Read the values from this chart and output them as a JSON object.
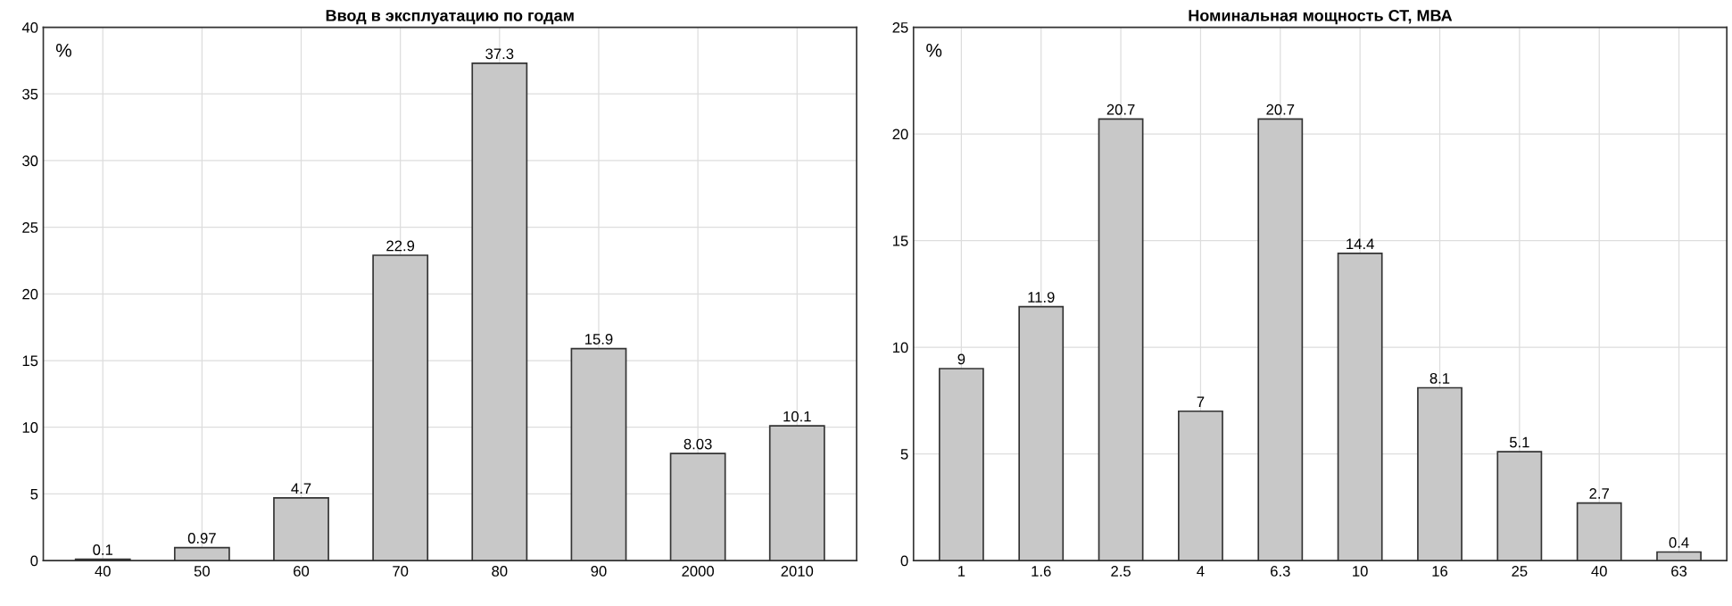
{
  "chart_data": [
    {
      "type": "bar",
      "title": "Ввод в эксплуатацию по годам",
      "ylabel": "%",
      "categories": [
        "40",
        "50",
        "60",
        "70",
        "80",
        "90",
        "2000",
        "2010"
      ],
      "values": [
        0.1,
        0.97,
        4.7,
        22.9,
        37.3,
        15.9,
        8.03,
        10.1
      ],
      "color": "#c8c8c8",
      "ylim": [
        0,
        40
      ],
      "yticks": [
        0,
        5,
        10,
        15,
        20,
        25,
        30,
        35,
        40
      ],
      "grid": true,
      "data_labels": true
    },
    {
      "type": "bar",
      "title": "Номинальная мощность СТ, МВА",
      "ylabel": "%",
      "categories": [
        "1",
        "1.6",
        "2.5",
        "4",
        "6.3",
        "10",
        "16",
        "25",
        "40",
        "63"
      ],
      "values": [
        9,
        11.9,
        20.7,
        7,
        20.7,
        14.4,
        8.1,
        5.1,
        2.7,
        0.4
      ],
      "color": "#c8c8c8",
      "ylim": [
        0,
        25
      ],
      "yticks": [
        0,
        5,
        10,
        15,
        20,
        25
      ],
      "grid": true,
      "data_labels": true
    }
  ]
}
